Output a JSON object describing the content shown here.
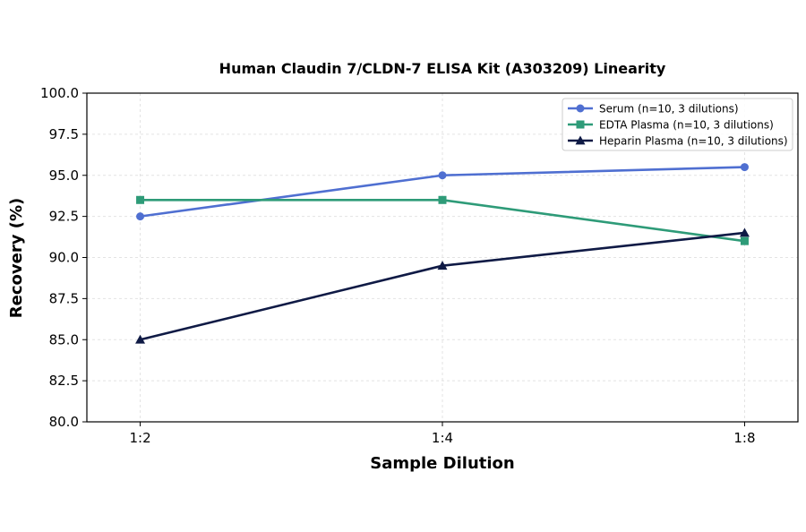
{
  "chart_data": {
    "type": "line",
    "title": "Human Claudin 7/CLDN-7 ELISA Kit (A303209) Linearity",
    "xlabel": "Sample Dilution",
    "ylabel": "Recovery (%)",
    "categories": [
      "1:2",
      "1:4",
      "1:8"
    ],
    "ylim": [
      80.0,
      100.0
    ],
    "yticks": [
      "80.0",
      "82.5",
      "85.0",
      "87.5",
      "90.0",
      "92.5",
      "95.0",
      "97.5",
      "100.0"
    ],
    "grid": true,
    "legend_position": "top-right",
    "series": [
      {
        "name": "Serum (n=10, 3 dilutions)",
        "values": [
          92.5,
          95.0,
          95.5
        ],
        "color": "#4f6fd1",
        "marker": "circle"
      },
      {
        "name": "EDTA Plasma (n=10, 3 dilutions)",
        "values": [
          93.5,
          93.5,
          91.0
        ],
        "color": "#2e9b78",
        "marker": "square"
      },
      {
        "name": "Heparin Plasma (n=10, 3 dilutions)",
        "values": [
          85.0,
          89.5,
          91.5
        ],
        "color": "#0f1a45",
        "marker": "triangle"
      }
    ]
  }
}
